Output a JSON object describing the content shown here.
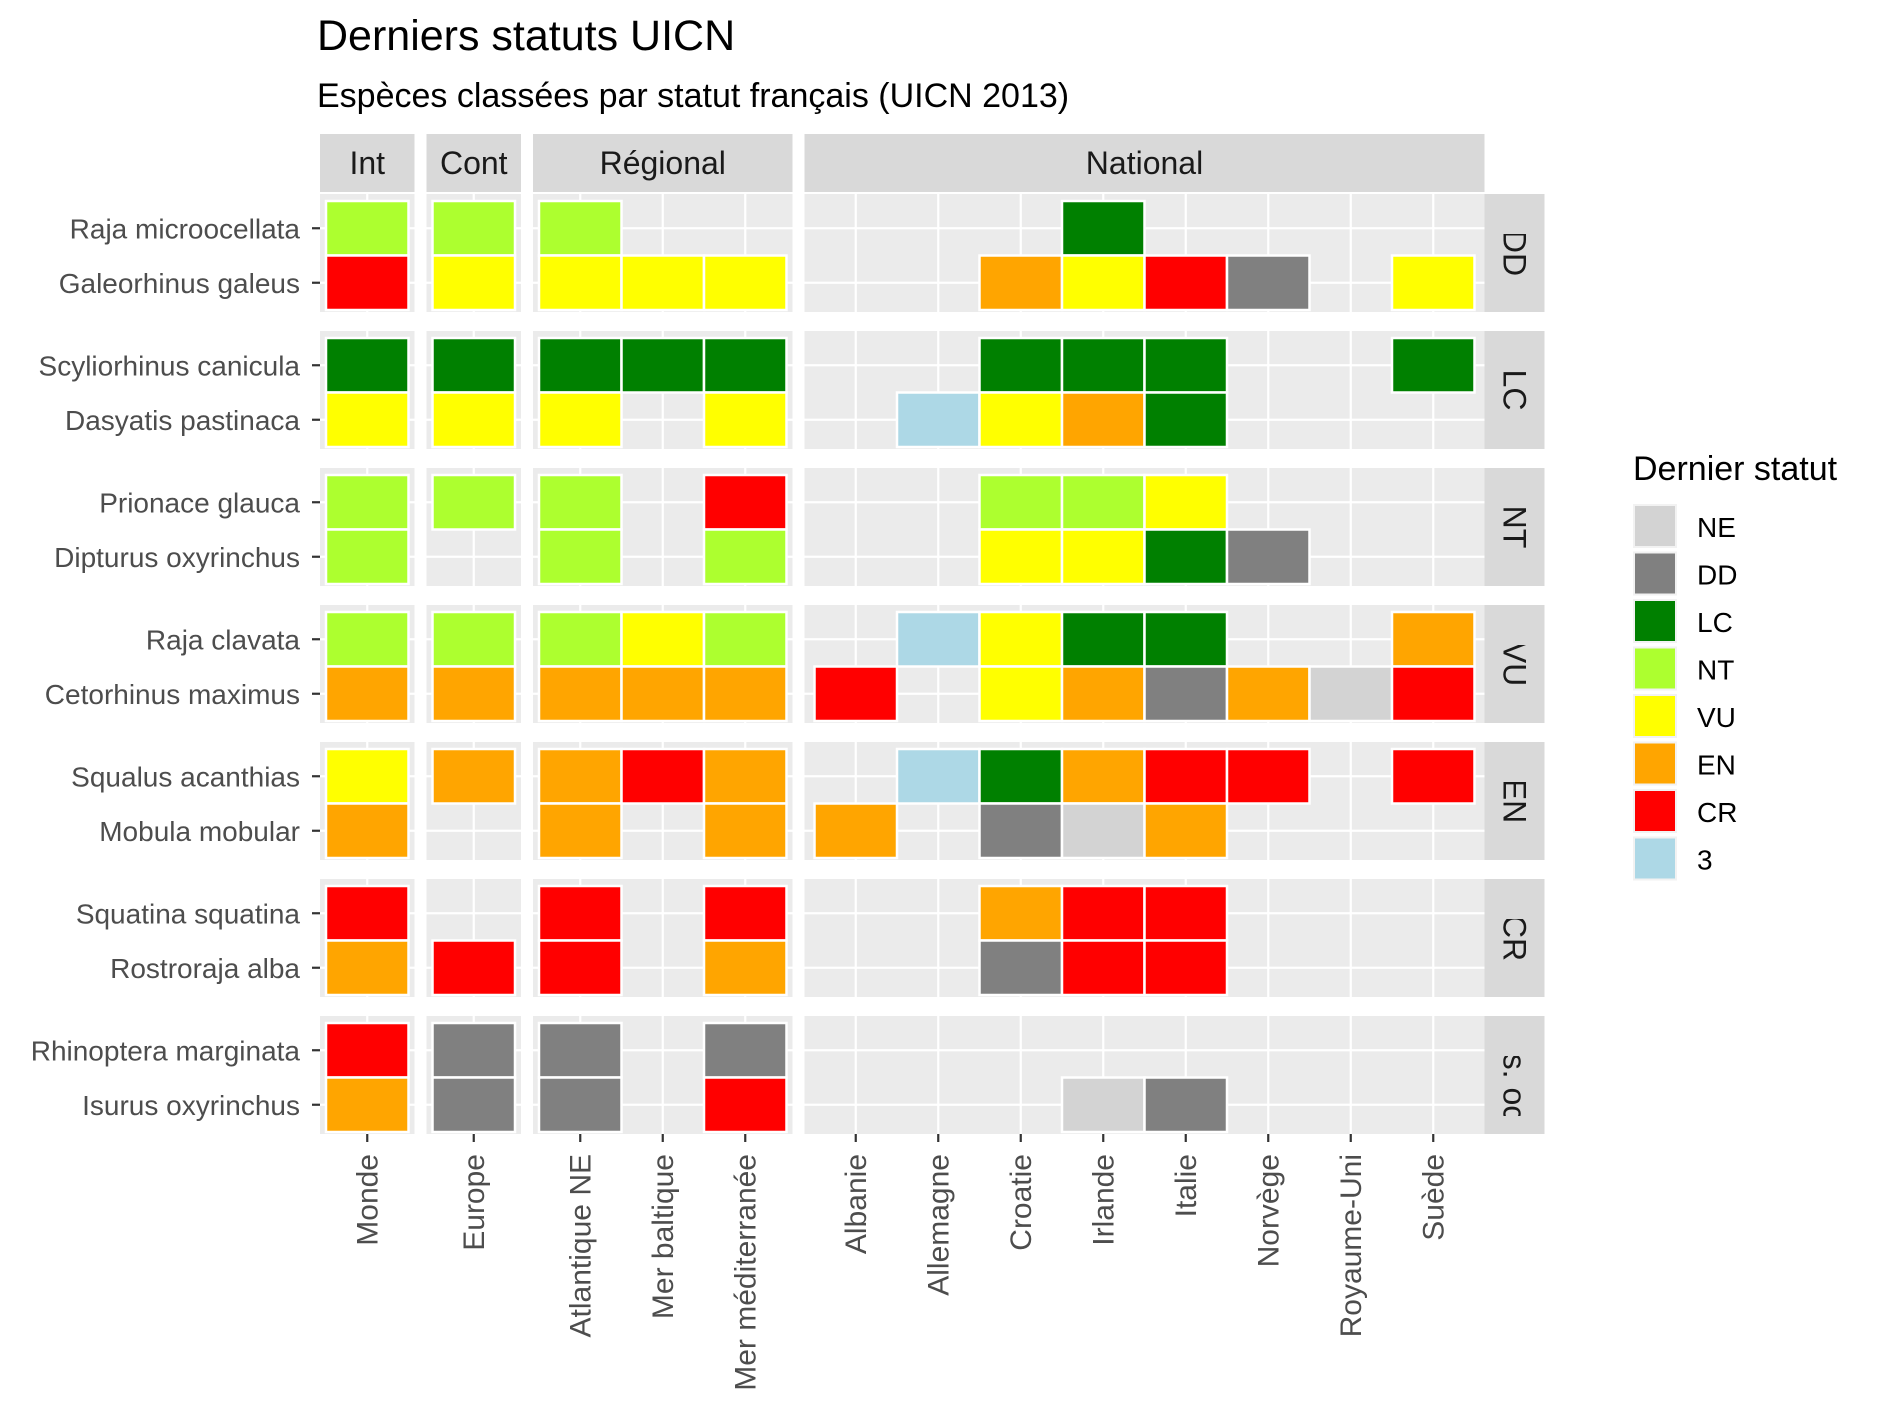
{
  "chart_data": {
    "type": "heatmap",
    "title": "Derniers statuts UICN",
    "subtitle": "Espèces classées par statut français (UICN 2013)",
    "legend": {
      "title": "Dernier statut",
      "position": "right",
      "entries": [
        {
          "label": "NE",
          "color": "#d3d3d3"
        },
        {
          "label": "DD",
          "color": "#808080"
        },
        {
          "label": "LC",
          "color": "#008000"
        },
        {
          "label": "NT",
          "color": "#adff2f"
        },
        {
          "label": "VU",
          "color": "#ffff00"
        },
        {
          "label": "EN",
          "color": "#ffa500"
        },
        {
          "label": "CR",
          "color": "#ff0000"
        },
        {
          "label": "3",
          "color": "#add8e6"
        }
      ]
    },
    "column_facets": [
      {
        "label": "Int",
        "columns": [
          "Monde"
        ]
      },
      {
        "label": "Cont",
        "columns": [
          "Europe"
        ]
      },
      {
        "label": "Régional",
        "columns": [
          "Atlantique NE",
          "Mer baltique",
          "Mer méditerranée"
        ]
      },
      {
        "label": "National",
        "columns": [
          "Albanie",
          "Allemagne",
          "Croatie",
          "Irlande",
          "Italie",
          "Norvège",
          "Royaume-Uni",
          "Suède"
        ]
      }
    ],
    "row_facets": [
      {
        "label": "DD",
        "species": [
          "Raja microocellata",
          "Galeorhinus galeus"
        ]
      },
      {
        "label": "LC",
        "species": [
          "Scyliorhinus canicula",
          "Dasyatis pastinaca"
        ]
      },
      {
        "label": "NT",
        "species": [
          "Prionace glauca",
          "Dipturus oxyrinchus"
        ]
      },
      {
        "label": "VU",
        "species": [
          "Raja clavata",
          "Cetorhinus maximus"
        ]
      },
      {
        "label": "EN",
        "species": [
          "Squalus acanthias",
          "Mobula mobular"
        ]
      },
      {
        "label": "CR",
        "species": [
          "Squatina squatina",
          "Rostroraja alba"
        ]
      },
      {
        "label": "Prés. occ.",
        "species": [
          "Rhinoptera marginata",
          "Isurus oxyrinchus"
        ]
      }
    ],
    "status": {
      "Raja microocellata": {
        "Monde": "NT",
        "Europe": "NT",
        "Atlantique NE": "NT",
        "Irlande": "LC"
      },
      "Galeorhinus galeus": {
        "Monde": "CR",
        "Europe": "VU",
        "Atlantique NE": "VU",
        "Mer baltique": "VU",
        "Mer méditerranée": "VU",
        "Croatie": "EN",
        "Irlande": "VU",
        "Italie": "CR",
        "Norvège": "DD",
        "Suède": "VU"
      },
      "Scyliorhinus canicula": {
        "Monde": "LC",
        "Europe": "LC",
        "Atlantique NE": "LC",
        "Mer baltique": "LC",
        "Mer méditerranée": "LC",
        "Croatie": "LC",
        "Irlande": "LC",
        "Italie": "LC",
        "Suède": "LC"
      },
      "Dasyatis pastinaca": {
        "Monde": "VU",
        "Europe": "VU",
        "Atlantique NE": "VU",
        "Mer méditerranée": "VU",
        "Allemagne": "3",
        "Croatie": "VU",
        "Irlande": "EN",
        "Italie": "LC"
      },
      "Prionace glauca": {
        "Monde": "NT",
        "Europe": "NT",
        "Atlantique NE": "NT",
        "Mer méditerranée": "CR",
        "Croatie": "NT",
        "Irlande": "NT",
        "Italie": "VU"
      },
      "Dipturus oxyrinchus": {
        "Monde": "NT",
        "Atlantique NE": "NT",
        "Mer méditerranée": "NT",
        "Croatie": "VU",
        "Irlande": "VU",
        "Italie": "LC",
        "Norvège": "DD"
      },
      "Raja clavata": {
        "Monde": "NT",
        "Europe": "NT",
        "Atlantique NE": "NT",
        "Mer baltique": "VU",
        "Mer méditerranée": "NT",
        "Allemagne": "3",
        "Croatie": "VU",
        "Irlande": "LC",
        "Italie": "LC",
        "Suède": "EN"
      },
      "Cetorhinus maximus": {
        "Monde": "EN",
        "Europe": "EN",
        "Atlantique NE": "EN",
        "Mer baltique": "EN",
        "Mer méditerranée": "EN",
        "Albanie": "CR",
        "Croatie": "VU",
        "Irlande": "EN",
        "Italie": "DD",
        "Norvège": "EN",
        "Royaume-Uni": "NE",
        "Suède": "CR"
      },
      "Squalus acanthias": {
        "Monde": "VU",
        "Europe": "EN",
        "Atlantique NE": "EN",
        "Mer baltique": "CR",
        "Mer méditerranée": "EN",
        "Allemagne": "3",
        "Croatie": "LC",
        "Irlande": "EN",
        "Italie": "CR",
        "Norvège": "CR",
        "Suède": "CR"
      },
      "Mobula mobular": {
        "Monde": "EN",
        "Atlantique NE": "EN",
        "Mer méditerranée": "EN",
        "Albanie": "EN",
        "Croatie": "DD",
        "Irlande": "NE",
        "Italie": "EN"
      },
      "Squatina squatina": {
        "Monde": "CR",
        "Atlantique NE": "CR",
        "Mer méditerranée": "CR",
        "Croatie": "EN",
        "Irlande": "CR",
        "Italie": "CR"
      },
      "Rostroraja alba": {
        "Monde": "EN",
        "Europe": "CR",
        "Atlantique NE": "CR",
        "Mer méditerranée": "EN",
        "Croatie": "DD",
        "Irlande": "CR",
        "Italie": "CR"
      },
      "Rhinoptera marginata": {
        "Monde": "CR",
        "Europe": "DD",
        "Atlantique NE": "DD",
        "Mer méditerranée": "DD"
      },
      "Isurus oxyrinchus": {
        "Monde": "EN",
        "Europe": "DD",
        "Atlantique NE": "DD",
        "Mer méditerranée": "CR",
        "Irlande": "NE",
        "Italie": "DD"
      }
    }
  }
}
